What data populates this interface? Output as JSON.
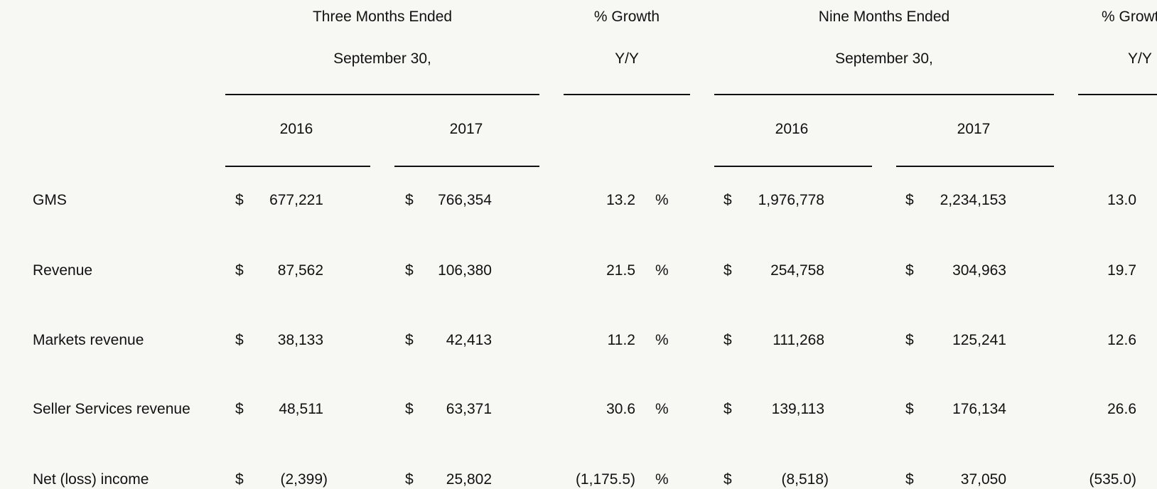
{
  "header": {
    "three_months": "Three Months Ended",
    "three_months_date": "September 30,",
    "growth_q": "% Growth",
    "growth_q_sub": "Y/Y",
    "nine_months": "Nine Months Ended",
    "nine_months_date": "September 30,",
    "growth_ytd": "% Growth",
    "growth_ytd_sub": "Y/Y",
    "years": [
      "2016",
      "2017",
      "2016",
      "2017"
    ]
  },
  "currency_symbol": "$",
  "percent_symbol": "%",
  "rows": [
    {
      "label": "GMS",
      "q2016": "677,221",
      "q2017": "766,354",
      "q_growth": "13.2",
      "ytd2016": "1,976,778",
      "ytd2017": "2,234,153",
      "ytd_growth": "13.0"
    },
    {
      "label": "Revenue",
      "q2016": "87,562",
      "q2017": "106,380",
      "q_growth": "21.5",
      "ytd2016": "254,758",
      "ytd2017": "304,963",
      "ytd_growth": "19.7"
    },
    {
      "label": "Markets revenue",
      "q2016": "38,133",
      "q2017": "42,413",
      "q_growth": "11.2",
      "ytd2016": "111,268",
      "ytd2017": "125,241",
      "ytd_growth": "12.6"
    },
    {
      "label": "Seller Services revenue",
      "q2016": "48,511",
      "q2017": "63,371",
      "q_growth": "30.6",
      "ytd2016": "139,113",
      "ytd2017": "176,134",
      "ytd_growth": "26.6"
    },
    {
      "label": "Net (loss) income",
      "q2016": "(2,399)",
      "q2017": "25,802",
      "q_growth": "(1,175.5)",
      "ytd2016": "(8,518)",
      "ytd2017": "37,050",
      "ytd_growth": "(535.0)"
    }
  ]
}
